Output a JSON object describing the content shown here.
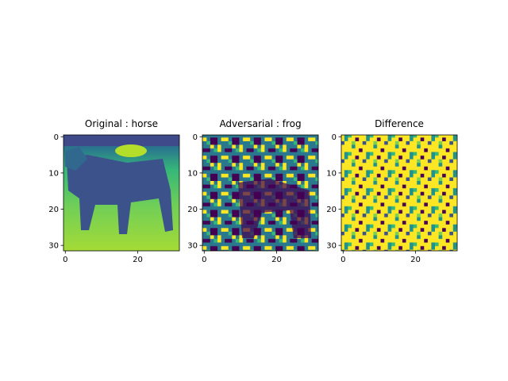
{
  "chart_data": [
    {
      "type": "image",
      "title": "Original : horse",
      "xlim": [
        -0.5,
        31.5
      ],
      "ylim": [
        31.5,
        -0.5
      ],
      "xticks": [
        0,
        20
      ],
      "yticks": [
        0,
        10,
        20,
        30
      ],
      "colormap": "viridis"
    },
    {
      "type": "image",
      "title": "Adversarial : frog",
      "xlim": [
        -0.5,
        31.5
      ],
      "ylim": [
        31.5,
        -0.5
      ],
      "xticks": [
        0,
        20
      ],
      "yticks": [
        0,
        10,
        20,
        30
      ],
      "colormap": "viridis"
    },
    {
      "type": "image",
      "title": "Difference",
      "xlim": [
        -0.5,
        31.5
      ],
      "ylim": [
        31.5,
        -0.5
      ],
      "xticks": [
        0,
        20
      ],
      "yticks": [
        0,
        10,
        20,
        30
      ],
      "colormap": "viridis"
    }
  ]
}
